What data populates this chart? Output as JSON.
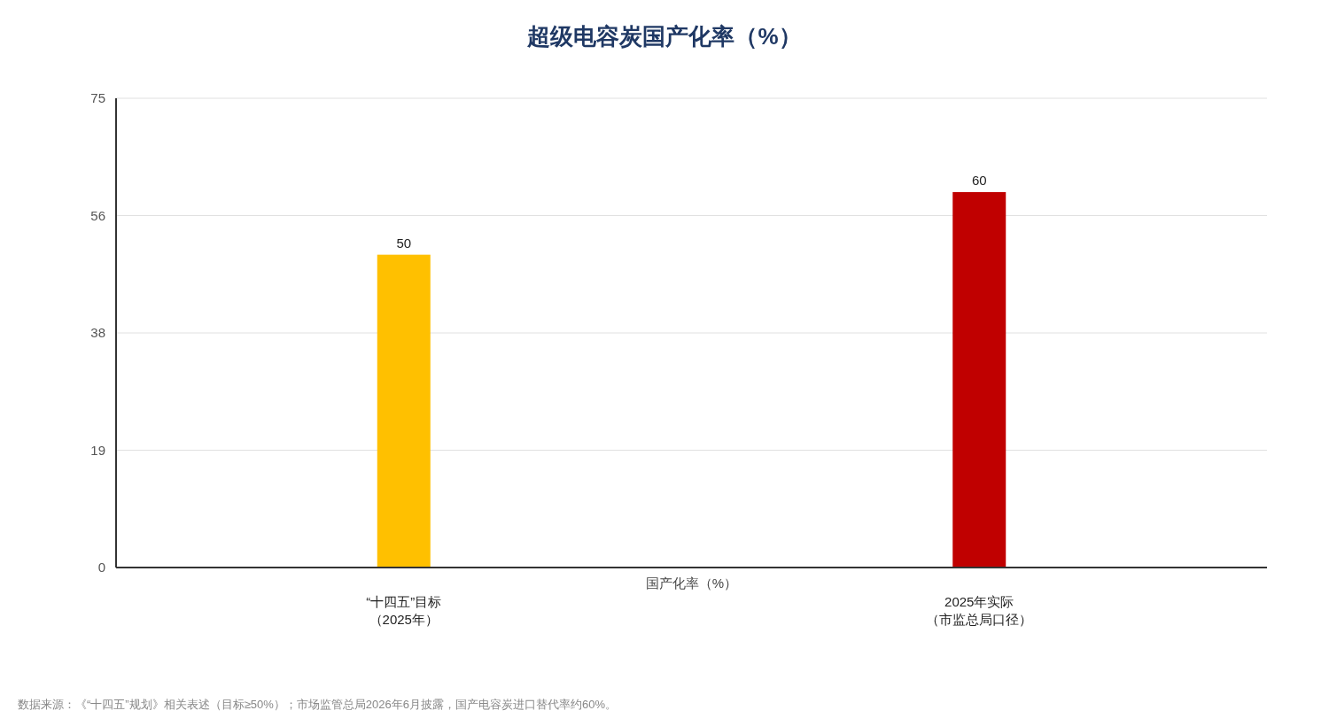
{
  "chart_data": {
    "type": "bar",
    "title": "超级电容炭国产化率（%）",
    "xlabel": "国产化率（%）",
    "categories": [
      "“十四五”目标（2025年）",
      "2025年实际（市监总局口径）"
    ],
    "values": [
      50,
      60
    ],
    "colors": [
      "#ffc000",
      "#c00000"
    ],
    "ylim": [
      0,
      75
    ],
    "yticks": [
      0,
      {
        "value": 18.75,
        "label": "19"
      },
      {
        "value": 37.5,
        "label": "38"
      },
      {
        "value": 56.25,
        "label": "56"
      },
      75
    ],
    "grid": "y",
    "data_labels": true,
    "annotations": [
      "数据来源：《“十四五”规划》相关表述（目标≥50%）；市场监管总局2026年6月披露，国产电容炭进口替代率约60%。"
    ]
  }
}
